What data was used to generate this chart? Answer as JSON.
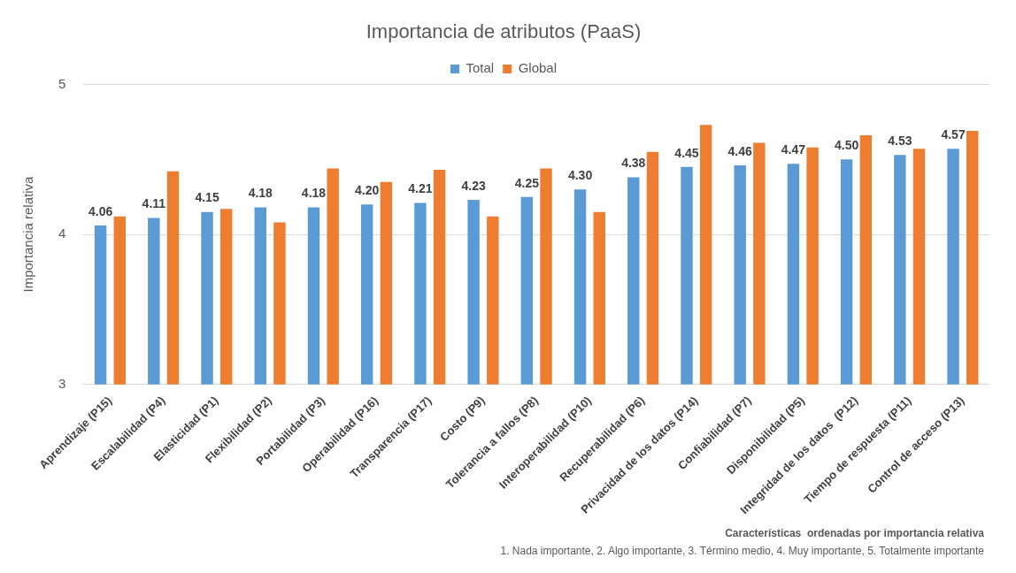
{
  "chart_data": {
    "type": "bar",
    "title": "Importancia de atributos (PaaS)",
    "ylabel": "Importancia relativa",
    "categories": [
      "Aprendizaje (P15)",
      "Escalabilidad (P4)",
      "Elasticidad (P1)",
      "Flexibilidad (P2)",
      "Portabilidad (P3)",
      "Operabilidad (P16)",
      "Transparencia (P17)",
      "Costo (P9)",
      "Tolerancia a fallos (P8)",
      "Interoperabilidad (P10)",
      "Recuperabilidad (P6)",
      "Privacidad de los datos (P14)",
      "Confiabilidad (P7)",
      "Disponibilidad (P5)",
      "Integridad de los datos  (P12)",
      "Tiempo de respuesta (P11)",
      "Control de acceso (P13)"
    ],
    "series": [
      {
        "name": "Total",
        "color": "#5b9bd5",
        "values": [
          4.06,
          4.11,
          4.15,
          4.18,
          4.18,
          4.2,
          4.21,
          4.23,
          4.25,
          4.3,
          4.38,
          4.45,
          4.46,
          4.47,
          4.5,
          4.53,
          4.57
        ],
        "value_labels": [
          "4.06",
          "4.11",
          "4.15",
          "4.18",
          "4.18",
          "4.20",
          "4.21",
          "4.23",
          "4.25",
          "4.30",
          "4.38",
          "4.45",
          "4.46",
          "4.47",
          "4.50",
          "4.53",
          "4.57"
        ]
      },
      {
        "name": "Global",
        "color": "#ed7d31",
        "values": [
          4.12,
          4.42,
          4.17,
          4.08,
          4.44,
          4.35,
          4.43,
          4.12,
          4.44,
          4.15,
          4.55,
          4.73,
          4.61,
          4.58,
          4.66,
          4.57,
          4.69
        ]
      }
    ],
    "ylim": [
      3,
      5
    ],
    "yticks": [
      3,
      4,
      5
    ],
    "grid": "y",
    "legend": "top",
    "annotations": [
      "Características  ordenadas por importancia relativa",
      "1. Nada importante, 2. Algo importante, 3. Término medio, 4. Muy importante, 5. Totalmente importante"
    ]
  }
}
